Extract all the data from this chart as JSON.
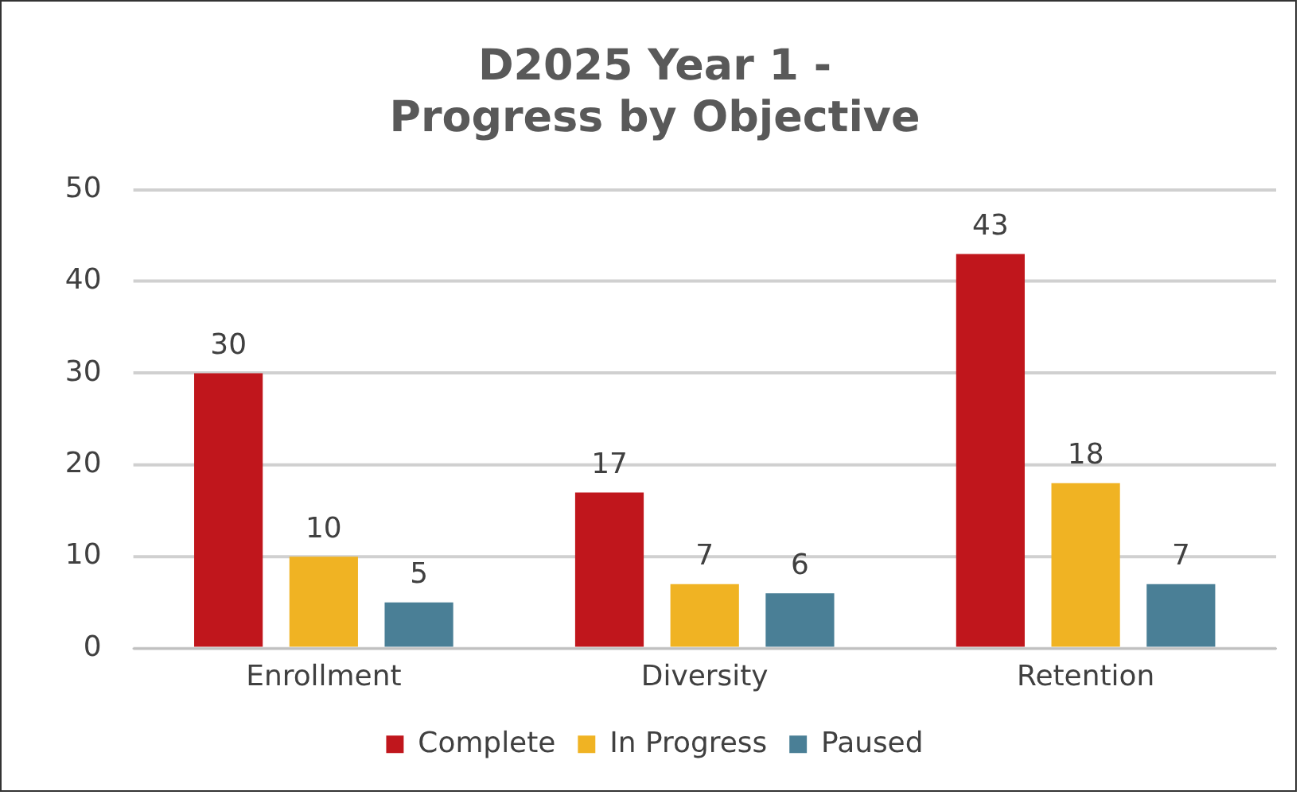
{
  "chart_data": {
    "type": "bar",
    "title": "D2025 Year 1 - Progress by Objective",
    "categories": [
      "Enrollment",
      "Diversity",
      "Retention"
    ],
    "series": [
      {
        "name": "Complete",
        "color": "#c0161c",
        "values": [
          30,
          17,
          43
        ]
      },
      {
        "name": "In Progress",
        "color": "#f0b323",
        "values": [
          10,
          7,
          18
        ]
      },
      {
        "name": "Paused",
        "color": "#4a7f96",
        "values": [
          5,
          6,
          7
        ]
      }
    ],
    "ylim": [
      0,
      50
    ],
    "yticks": [
      0,
      10,
      20,
      30,
      40,
      50
    ],
    "grid": "y",
    "legend": "bottom",
    "data_labels": true
  }
}
